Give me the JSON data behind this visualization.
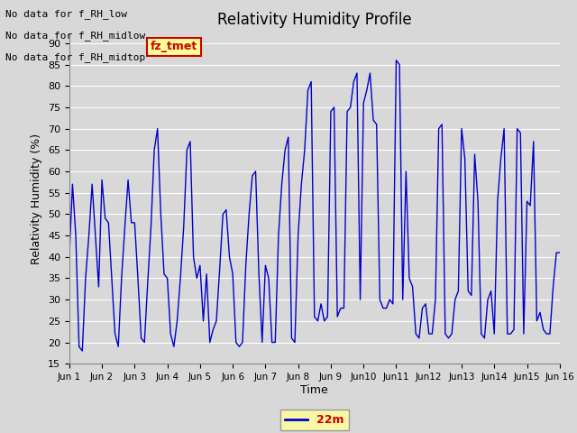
{
  "title": "Relativity Humidity Profile",
  "ylabel": "Relativity Humidity (%)",
  "xlabel": "Time",
  "legend_label": "22m",
  "line_color": "#0000cc",
  "legend_line_color": "#0000cc",
  "ylim": [
    15,
    92
  ],
  "yticks": [
    15,
    20,
    25,
    30,
    35,
    40,
    45,
    50,
    55,
    60,
    65,
    70,
    75,
    80,
    85,
    90
  ],
  "bg_color": "#d8d8d8",
  "plot_bg_color": "#d8d8d8",
  "annotations_outside": [
    "No data for f_RH_low",
    "No data for f_RH_midlow",
    "No data for f_RH_midtop"
  ],
  "legend_box_color": "#ffff99",
  "legend_text_color": "#cc0000",
  "xtick_labels": [
    "Jun 1",
    "Jun 2",
    "Jun 3",
    "Jun 4",
    "Jun 5",
    "Jun 6",
    "Jun 7",
    "Jun 8",
    "Jun 9",
    "Jun10",
    "Jun11",
    "Jun12",
    "Jun13",
    "Jun14",
    "Jun15",
    "Jun 16"
  ],
  "x_values": [
    0.0,
    0.1,
    0.2,
    0.3,
    0.4,
    0.5,
    0.6,
    0.7,
    0.8,
    0.9,
    1.0,
    1.1,
    1.2,
    1.3,
    1.4,
    1.5,
    1.6,
    1.7,
    1.8,
    1.9,
    2.0,
    2.1,
    2.2,
    2.3,
    2.4,
    2.5,
    2.6,
    2.7,
    2.8,
    2.9,
    3.0,
    3.1,
    3.2,
    3.3,
    3.4,
    3.5,
    3.6,
    3.7,
    3.8,
    3.9,
    4.0,
    4.1,
    4.2,
    4.3,
    4.4,
    4.5,
    4.6,
    4.7,
    4.8,
    4.9,
    5.0,
    5.1,
    5.2,
    5.3,
    5.4,
    5.5,
    5.6,
    5.7,
    5.8,
    5.9,
    6.0,
    6.1,
    6.2,
    6.3,
    6.4,
    6.5,
    6.6,
    6.7,
    6.8,
    6.9,
    7.0,
    7.1,
    7.2,
    7.3,
    7.4,
    7.5,
    7.6,
    7.7,
    7.8,
    7.9,
    8.0,
    8.1,
    8.2,
    8.3,
    8.4,
    8.5,
    8.6,
    8.7,
    8.8,
    8.9,
    9.0,
    9.1,
    9.2,
    9.3,
    9.4,
    9.5,
    9.6,
    9.7,
    9.8,
    9.9,
    10.0,
    10.1,
    10.2,
    10.3,
    10.4,
    10.5,
    10.6,
    10.7,
    10.8,
    10.9,
    11.0,
    11.1,
    11.2,
    11.3,
    11.4,
    11.5,
    11.6,
    11.7,
    11.8,
    11.9,
    12.0,
    12.1,
    12.2,
    12.3,
    12.4,
    12.5,
    12.6,
    12.7,
    12.8,
    12.9,
    13.0,
    13.1,
    13.2,
    13.3,
    13.4,
    13.5,
    13.6,
    13.7,
    13.8,
    13.9,
    14.0,
    14.1,
    14.2,
    14.3,
    14.4,
    14.5,
    14.6,
    14.7,
    14.8,
    14.9,
    15.0
  ],
  "y_values": [
    40,
    57,
    45,
    19,
    18,
    35,
    45,
    57,
    45,
    33,
    58,
    49,
    48,
    35,
    22,
    19,
    35,
    47,
    58,
    48,
    48,
    35,
    21,
    20,
    34,
    47,
    65,
    70,
    50,
    36,
    35,
    22,
    19,
    25,
    35,
    47,
    65,
    67,
    40,
    35,
    38,
    25,
    36,
    20,
    23,
    25,
    37,
    50,
    51,
    40,
    36,
    20,
    19,
    20,
    38,
    50,
    59,
    60,
    36,
    20,
    38,
    35,
    20,
    20,
    45,
    57,
    65,
    68,
    21,
    20,
    45,
    57,
    65,
    79,
    81,
    26,
    25,
    29,
    25,
    26,
    74,
    75,
    26,
    28,
    28,
    74,
    75,
    81,
    83,
    30,
    76,
    79,
    83,
    72,
    71,
    30,
    28,
    28,
    30,
    29,
    86,
    85,
    30,
    60,
    35,
    33,
    22,
    21,
    28,
    29,
    22,
    22,
    30,
    70,
    71,
    22,
    21,
    22,
    30,
    32,
    70,
    63,
    32,
    31,
    64,
    53,
    22,
    21,
    30,
    32,
    22,
    53,
    63,
    70,
    22,
    22,
    23,
    70,
    69,
    22,
    53,
    52,
    67,
    25,
    27,
    23,
    22,
    22,
    33,
    41,
    41
  ]
}
